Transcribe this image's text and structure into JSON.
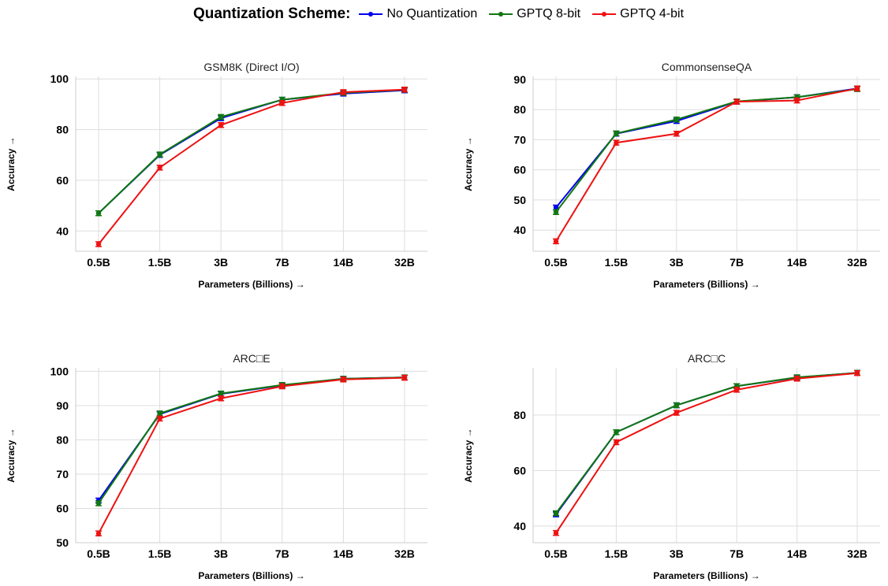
{
  "legend": {
    "title": "Quantization Scheme:",
    "items": [
      {
        "label": "No Quantization",
        "color": "#0000ee"
      },
      {
        "label": "GPTQ 8-bit",
        "color": "#117711"
      },
      {
        "label": "GPTQ 4-bit",
        "color": "#ee1111"
      }
    ]
  },
  "chart_data": [
    {
      "type": "line",
      "title": "GSM8K (Direct I/O)",
      "xlabel": "Parameters (Billions) →",
      "ylabel": "Accuracy →",
      "categories": [
        "0.5B",
        "1.5B",
        "3B",
        "7B",
        "14B",
        "32B"
      ],
      "ylim": [
        32,
        101
      ],
      "yticks": [
        40,
        60,
        80,
        100
      ],
      "grid": true,
      "series": [
        {
          "name": "No Quantization",
          "values": [
            47.0,
            70.0,
            84.5,
            91.8,
            94.2,
            95.5
          ]
        },
        {
          "name": "GPTQ 8-bit",
          "values": [
            47.0,
            70.2,
            85.0,
            91.8,
            94.5,
            95.7
          ]
        },
        {
          "name": "GPTQ 4-bit",
          "values": [
            34.8,
            65.0,
            81.8,
            90.5,
            94.8,
            95.8
          ]
        }
      ]
    },
    {
      "type": "line",
      "title": "CommonsenseQA",
      "xlabel": "Parameters (Billions) →",
      "ylabel": "Accuracy →",
      "categories": [
        "0.5B",
        "1.5B",
        "3B",
        "7B",
        "14B",
        "32B"
      ],
      "ylim": [
        33,
        91
      ],
      "yticks": [
        40,
        50,
        60,
        70,
        80,
        90
      ],
      "grid": true,
      "series": [
        {
          "name": "No Quantization",
          "values": [
            47.5,
            72.0,
            76.2,
            82.6,
            84.1,
            87.0
          ]
        },
        {
          "name": "GPTQ 8-bit",
          "values": [
            46.0,
            72.1,
            76.7,
            82.7,
            84.1,
            86.8
          ]
        },
        {
          "name": "GPTQ 4-bit",
          "values": [
            36.3,
            69.0,
            72.0,
            82.6,
            83.0,
            87.0
          ]
        }
      ]
    },
    {
      "type": "line",
      "title": "ARC□E",
      "xlabel": "Parameters (Billions) →",
      "ylabel": "Accuracy →",
      "categories": [
        "0.5B",
        "1.5B",
        "3B",
        "7B",
        "14B",
        "32B"
      ],
      "ylim": [
        50,
        101
      ],
      "yticks": [
        50,
        60,
        70,
        80,
        90,
        100
      ],
      "grid": true,
      "series": [
        {
          "name": "No Quantization",
          "values": [
            62.3,
            87.5,
            93.4,
            95.9,
            97.8,
            98.2
          ]
        },
        {
          "name": "GPTQ 8-bit",
          "values": [
            61.5,
            87.7,
            93.5,
            96.0,
            97.8,
            98.2
          ]
        },
        {
          "name": "GPTQ 4-bit",
          "values": [
            52.7,
            86.2,
            92.1,
            95.6,
            97.6,
            98.1
          ]
        }
      ]
    },
    {
      "type": "line",
      "title": "ARC□C",
      "xlabel": "Parameters (Billions) →",
      "ylabel": "Accuracy →",
      "categories": [
        "0.5B",
        "1.5B",
        "3B",
        "7B",
        "14B",
        "32B"
      ],
      "ylim": [
        34,
        97
      ],
      "yticks": [
        40,
        60,
        80
      ],
      "grid": true,
      "series": [
        {
          "name": "No Quantization",
          "values": [
            44.2,
            73.8,
            83.5,
            90.4,
            93.5,
            95.2
          ]
        },
        {
          "name": "GPTQ 8-bit",
          "values": [
            44.6,
            73.8,
            83.5,
            90.4,
            93.6,
            95.2
          ]
        },
        {
          "name": "GPTQ 4-bit",
          "values": [
            37.5,
            70.2,
            80.8,
            89.1,
            93.1,
            95.1
          ]
        }
      ]
    }
  ]
}
